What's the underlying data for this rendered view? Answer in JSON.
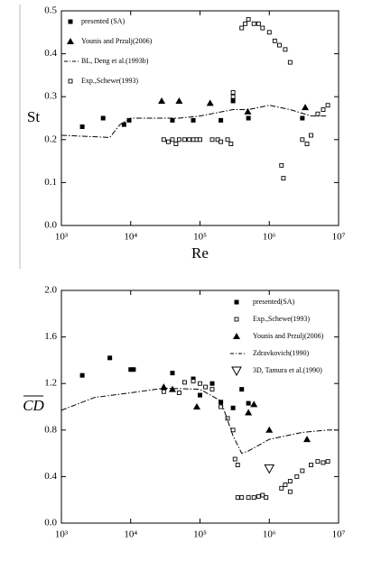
{
  "chart_data": [
    {
      "type": "scatter",
      "xscale": "log",
      "ylabel": "St",
      "xlabel": "Re",
      "legend": "upper left",
      "xlim": [
        1000,
        10000000
      ],
      "xticks": [
        {
          "value": 1000,
          "label": "10³"
        },
        {
          "value": 10000,
          "label": "10⁴"
        },
        {
          "value": 100000,
          "label": "10⁵"
        },
        {
          "value": 1000000,
          "label": "10⁶"
        },
        {
          "value": 10000000,
          "label": "10⁷"
        }
      ],
      "ylim": [
        0,
        0.5
      ],
      "yticks": [
        {
          "value": 0,
          "label": "0.0"
        },
        0.1,
        0.2,
        0.3,
        0.4,
        0.5
      ],
      "series": [
        {
          "name": "presented (SA)",
          "color": "#000000",
          "marker": "square-filled",
          "x": [
            2000,
            4000,
            8000,
            9500,
            40000,
            80000,
            200000,
            300000,
            500000,
            3000000
          ],
          "values": [
            0.23,
            0.25,
            0.235,
            0.245,
            0.245,
            0.245,
            0.245,
            0.29,
            0.25,
            0.25
          ]
        },
        {
          "name": "Younis and Przulj(2006)",
          "color": "#000000",
          "marker": "triangle-filled",
          "x": [
            28000,
            50000,
            140000,
            490000,
            3300000
          ],
          "values": [
            0.29,
            0.29,
            0.285,
            0.265,
            0.275
          ]
        },
        {
          "name": "BL, Deng et al.(1993b)",
          "color": "#000000",
          "marker": "line",
          "x": [
            1000,
            5000,
            7000,
            10000,
            50000,
            100000,
            300000,
            500000,
            1000000,
            2000000,
            4000000,
            7000000
          ],
          "values": [
            0.21,
            0.205,
            0.235,
            0.25,
            0.25,
            0.255,
            0.27,
            0.27,
            0.28,
            0.27,
            0.255,
            0.255
          ]
        },
        {
          "name": "Exp.,Schewe(1993)",
          "color": "#000000",
          "marker": "square-open",
          "x": [
            30000,
            35000,
            40000,
            45000,
            50000,
            60000,
            70000,
            80000,
            90000,
            100000,
            150000,
            180000,
            200000,
            250000,
            280000,
            300000,
            300000,
            400000,
            450000,
            500000,
            600000,
            700000,
            800000,
            1000000,
            1200000,
            1400000,
            1700000,
            1500000,
            1600000,
            2000000,
            3000000,
            3500000,
            4000000,
            5000000,
            6000000,
            7000000
          ],
          "values": [
            0.2,
            0.195,
            0.2,
            0.19,
            0.2,
            0.2,
            0.2,
            0.2,
            0.2,
            0.2,
            0.2,
            0.2,
            0.195,
            0.2,
            0.19,
            0.31,
            0.3,
            0.46,
            0.47,
            0.48,
            0.47,
            0.47,
            0.46,
            0.45,
            0.43,
            0.42,
            0.41,
            0.14,
            0.11,
            0.38,
            0.2,
            0.19,
            0.21,
            0.26,
            0.27,
            0.28
          ]
        }
      ]
    },
    {
      "type": "scatter",
      "xscale": "log",
      "ylabel": "CD",
      "legend": "upper right",
      "xlim": [
        1000,
        10000000
      ],
      "xticks": [
        {
          "value": 1000,
          "label": "10³"
        },
        {
          "value": 10000,
          "label": "10⁴"
        },
        {
          "value": 100000,
          "label": "10⁵"
        },
        {
          "value": 1000000,
          "label": "10⁶"
        },
        {
          "value": 10000000,
          "label": "10⁷"
        }
      ],
      "ylim": [
        0,
        2
      ],
      "yticks": [
        {
          "value": 0,
          "label": "0.0"
        },
        0.4,
        0.8,
        1.2,
        1.6,
        {
          "value": 2,
          "label": "2.0"
        }
      ],
      "series": [
        {
          "name": "presented(SA)",
          "color": "#000000",
          "marker": "square-filled",
          "x": [
            2000,
            5000,
            10000,
            11000,
            40000,
            80000,
            100000,
            150000,
            200000,
            300000,
            400000,
            500000
          ],
          "values": [
            1.27,
            1.42,
            1.32,
            1.32,
            1.29,
            1.24,
            1.1,
            1.2,
            1.04,
            0.99,
            1.15,
            1.03
          ]
        },
        {
          "name": "Exp.,Schewe(1993)",
          "color": "#000000",
          "marker": "square-open",
          "x": [
            30000,
            50000,
            60000,
            80000,
            100000,
            120000,
            150000,
            200000,
            250000,
            300000,
            320000,
            350000,
            350000,
            400000,
            500000,
            600000,
            700000,
            800000,
            900000,
            1500000,
            1700000,
            2000000,
            2000000,
            2500000,
            3000000,
            4000000,
            5000000,
            6000000,
            7000000
          ],
          "values": [
            1.13,
            1.12,
            1.21,
            1.22,
            1.2,
            1.17,
            1.15,
            1,
            0.9,
            0.8,
            0.55,
            0.5,
            0.22,
            0.22,
            0.22,
            0.22,
            0.23,
            0.24,
            0.22,
            0.3,
            0.33,
            0.36,
            0.27,
            0.4,
            0.45,
            0.5,
            0.53,
            0.52,
            0.53
          ]
        },
        {
          "name": "Younis and Przulj(2006)",
          "color": "#000000",
          "marker": "triangle-filled",
          "x": [
            30000,
            40000,
            90000,
            500000,
            600000,
            1000000,
            3500000
          ],
          "values": [
            1.17,
            1.15,
            1,
            0.95,
            1.02,
            0.8,
            0.72
          ]
        },
        {
          "name": "Zdravkovich(1990)",
          "color": "#000000",
          "marker": "line",
          "x": [
            1000,
            3000,
            10000,
            30000,
            100000,
            200000,
            300000,
            400000,
            500000,
            1000000,
            3000000,
            7000000,
            10000000
          ],
          "values": [
            0.97,
            1.08,
            1.12,
            1.16,
            1.15,
            1.05,
            0.75,
            0.6,
            0.62,
            0.72,
            0.78,
            0.8,
            0.8
          ]
        },
        {
          "name": "3D, Tamura et al.(1990)",
          "color": "#000000",
          "marker": "triangle-down-open",
          "x": [
            1000000
          ],
          "values": [
            0.47
          ]
        }
      ]
    }
  ]
}
